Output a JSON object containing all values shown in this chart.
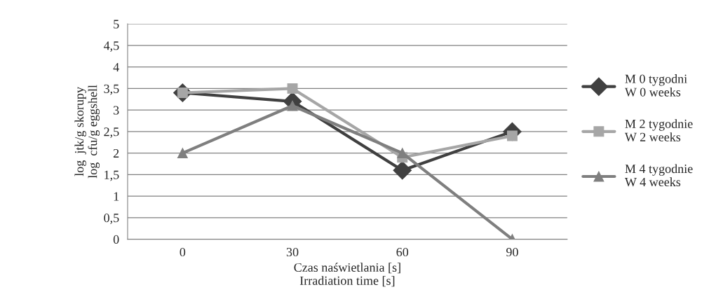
{
  "chart_data": {
    "type": "line",
    "xlabel": "Czas naświetlania [s]\nIrradiation time [s]",
    "ylabel": "log  jtk/g skorupy\nlog  cfu/g eggshell",
    "categories": [
      "0",
      "30",
      "60",
      "90"
    ],
    "series": [
      {
        "name": "M 0 tygodni\nW 0 weeks",
        "color": "#404040",
        "marker": "diamond",
        "values": [
          3.4,
          3.2,
          1.6,
          2.5
        ]
      },
      {
        "name": "M 2 tygodnie\nW 2 weeks",
        "color": "#a6a6a6",
        "marker": "square",
        "values": [
          3.4,
          3.5,
          1.9,
          2.4
        ]
      },
      {
        "name": "M 4 tygodnie\nW 4 weeks",
        "color": "#7f7f7f",
        "marker": "triangle",
        "values": [
          2.0,
          3.1,
          2.0,
          0.0
        ]
      }
    ],
    "ylim": [
      0,
      5
    ],
    "yticks": [
      0,
      {
        "value": 0.5,
        "label": "0,5"
      },
      1,
      {
        "value": 1.5,
        "label": "1,5"
      },
      2,
      {
        "value": 2.5,
        "label": "2,5"
      },
      3,
      {
        "value": 3.5,
        "label": "3,5"
      },
      4,
      {
        "value": 4.5,
        "label": "4,5"
      },
      5
    ],
    "grid": "y",
    "legend": "right"
  }
}
